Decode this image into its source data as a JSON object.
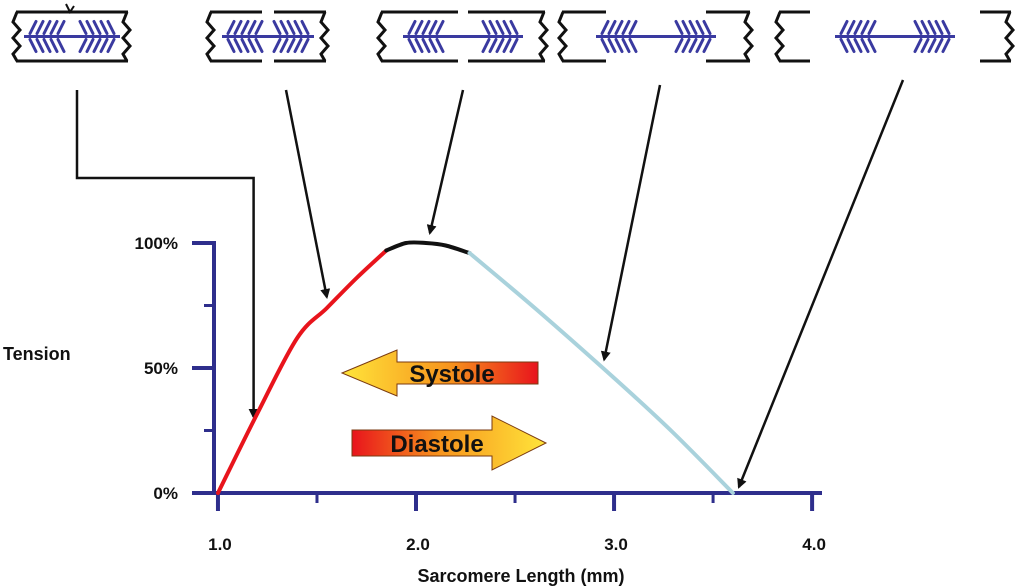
{
  "chart_data": {
    "type": "line",
    "xlabel": "Sarcomere Length (mm)",
    "ylabel": "Tension",
    "x_ticks": [
      "1.0",
      "2.0",
      "3.0",
      "4.0"
    ],
    "y_ticks": [
      "0%",
      "50%",
      "100%"
    ],
    "xlim": [
      0.98,
      4.05
    ],
    "ylim": [
      0,
      100
    ],
    "grid": false,
    "axis_color": "#2e2e8c",
    "series": [
      {
        "color": "#e8141c",
        "x": [
          1.0,
          1.2,
          1.4,
          1.55,
          1.7,
          1.85
        ],
        "y": [
          0,
          32,
          62,
          74,
          86,
          97
        ]
      },
      {
        "color": "#111111",
        "x": [
          1.85,
          1.95,
          2.05,
          2.15,
          2.27
        ],
        "y": [
          97,
          100,
          100,
          99,
          96
        ]
      },
      {
        "color": "#a9d2dc",
        "x": [
          2.27,
          2.6,
          3.0,
          3.3,
          3.6
        ],
        "y": [
          96,
          74,
          46,
          24,
          0
        ]
      }
    ],
    "annotations": {
      "systole": {
        "text": "Systole",
        "direction": "left"
      },
      "diastole": {
        "text": "Diastole",
        "direction": "right"
      }
    },
    "sarcomere_diagrams": [
      {
        "stage": 1,
        "points_to": {
          "x": 1.18,
          "y": 28
        }
      },
      {
        "stage": 2,
        "points_to": {
          "x": 1.57,
          "y": 76
        }
      },
      {
        "stage": 3,
        "points_to": {
          "x": 2.05,
          "y": 100
        }
      },
      {
        "stage": 4,
        "points_to": {
          "x": 2.93,
          "y": 51
        }
      },
      {
        "stage": 5,
        "points_to": {
          "x": 3.6,
          "y": 0
        }
      }
    ]
  }
}
